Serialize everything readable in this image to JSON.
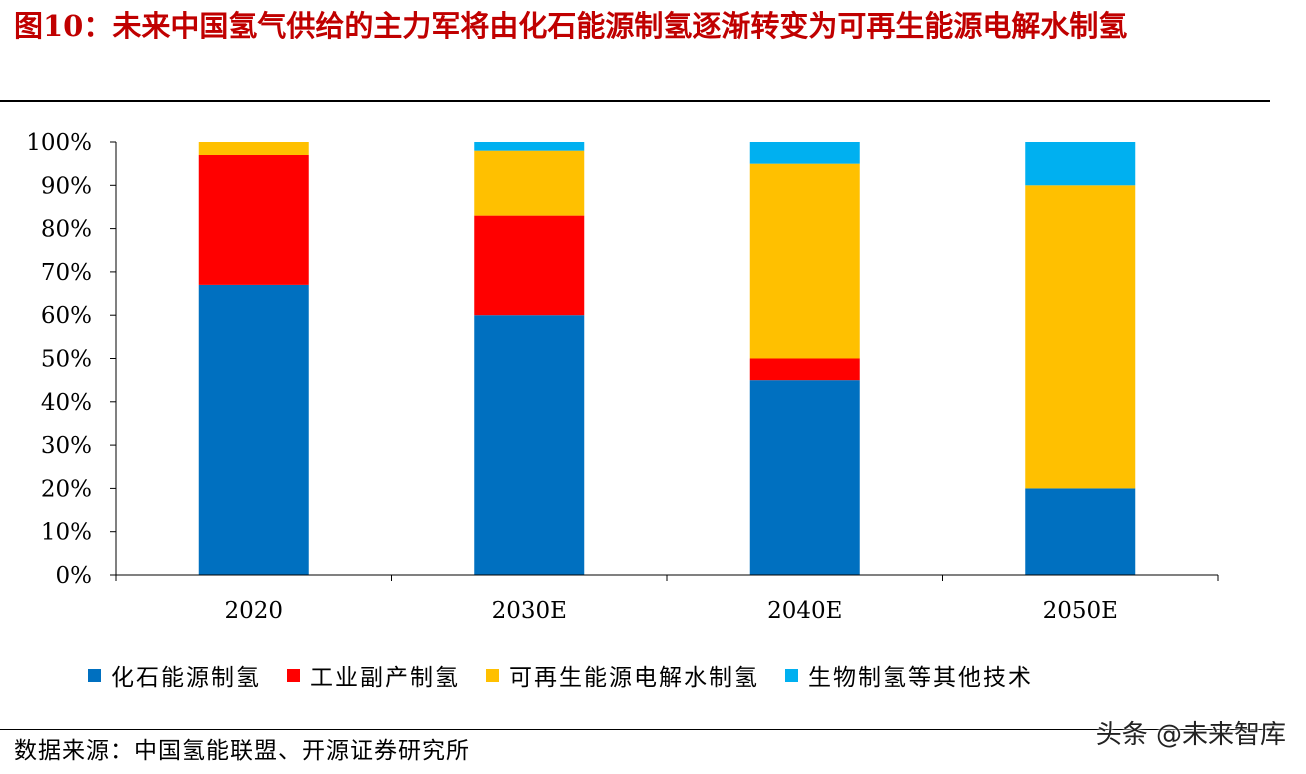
{
  "title": "图10：未来中国氢气供给的主力军将由化石能源制氢逐渐转变为可再生能源电解水制氢",
  "source": "数据来源：中国氢能联盟、开源证券研究所",
  "watermark": "头条 @未来智库",
  "chart_data": {
    "type": "bar",
    "stacked": true,
    "categories": [
      "2020",
      "2030E",
      "2040E",
      "2050E"
    ],
    "y_ticks": [
      "0%",
      "10%",
      "20%",
      "30%",
      "40%",
      "50%",
      "60%",
      "70%",
      "80%",
      "90%",
      "100%"
    ],
    "ylim": [
      0,
      100
    ],
    "grid": false,
    "legend_position": "bottom",
    "series": [
      {
        "name": "化石能源制氢",
        "color": "#0070c0",
        "values": [
          67,
          60,
          45,
          20
        ]
      },
      {
        "name": "工业副产制氢",
        "color": "#ff0000",
        "values": [
          30,
          23,
          5,
          0
        ]
      },
      {
        "name": "可再生能源电解水制氢",
        "color": "#ffc000",
        "values": [
          3,
          15,
          45,
          70
        ]
      },
      {
        "name": "生物制氢等其他技术",
        "color": "#00b0f0",
        "values": [
          0,
          2,
          5,
          10
        ]
      }
    ]
  }
}
